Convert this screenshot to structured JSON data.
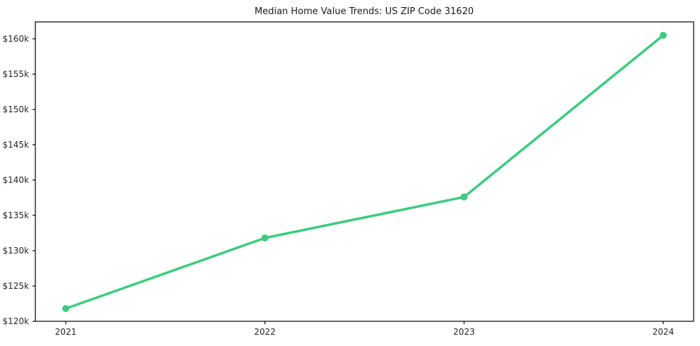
{
  "chart_data": {
    "type": "line",
    "title": "Median Home Value Trends: US ZIP Code 31620",
    "x": [
      2021,
      2022,
      2023,
      2024
    ],
    "xtick_labels": [
      "2021",
      "2022",
      "2023",
      "2024"
    ],
    "values": [
      121800,
      131800,
      137600,
      160500
    ],
    "ylim": [
      120000,
      160000
    ],
    "ytick_step": 5000,
    "ytick_labels": [
      "$120k",
      "$125k",
      "$130k",
      "$135k",
      "$140k",
      "$145k",
      "$150k",
      "$155k",
      "$160k"
    ],
    "xlabel": "",
    "ylabel": "",
    "grid": false,
    "legend": false,
    "line_color": "#3dcb80",
    "marker": "circle",
    "marker_radius": 5,
    "line_width": 3.5,
    "spine_color": "#000000",
    "tick_text_color": "#262626"
  }
}
